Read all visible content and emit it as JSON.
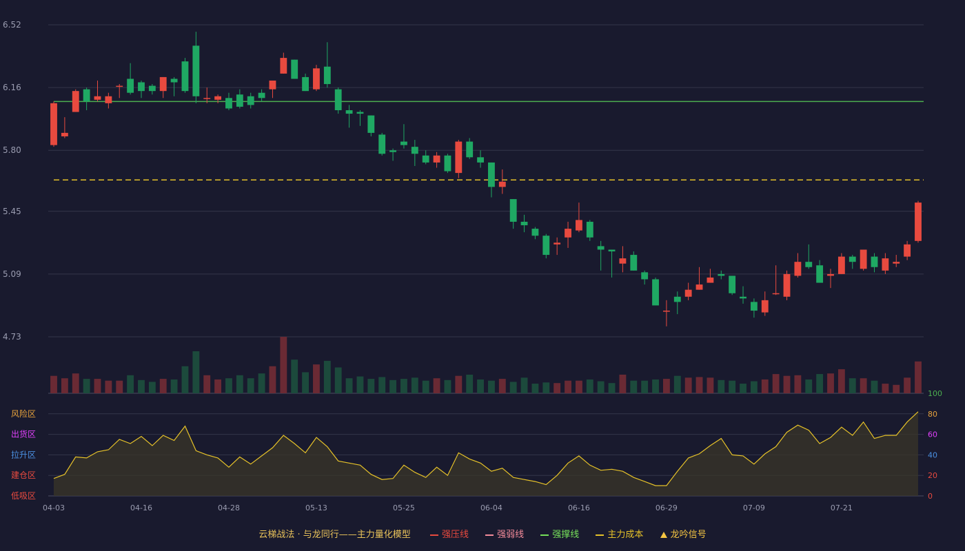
{
  "colors": {
    "background": "#191a2e",
    "up": "#e84a3f",
    "down": "#1fa863",
    "vol_up": "#6a2a34",
    "vol_down": "#1c4a3c",
    "support": "#4caf50",
    "cost": "#e6c229",
    "osc_line": "#e6c229",
    "grid": "#34364a"
  },
  "chart_data": [
    {
      "type": "candlestick",
      "ylim": [
        4.73,
        6.52
      ],
      "y_ticks": [
        "6.52",
        "6.16",
        "5.80",
        "5.45",
        "5.09",
        "4.73"
      ],
      "x_tick_labels": [
        "04-03",
        "04-16",
        "04-28",
        "05-13",
        "05-25",
        "06-04",
        "06-16",
        "06-29",
        "07-09",
        "07-21"
      ],
      "x_tick_indices": [
        0,
        8,
        16,
        24,
        32,
        40,
        48,
        56,
        64,
        72
      ],
      "support_level": 6.08,
      "cost_level": 5.63,
      "candles": [
        [
          5.83,
          6.07,
          6.08,
          5.82
        ],
        [
          5.88,
          5.9,
          5.99,
          5.87
        ],
        [
          6.02,
          6.14,
          6.15,
          6.02
        ],
        [
          6.15,
          6.08,
          6.16,
          6.03
        ],
        [
          6.09,
          6.11,
          6.2,
          6.08
        ],
        [
          6.07,
          6.11,
          6.13,
          6.04
        ],
        [
          6.17,
          6.17,
          6.18,
          6.1
        ],
        [
          6.21,
          6.13,
          6.3,
          6.12
        ],
        [
          6.19,
          6.14,
          6.2,
          6.1
        ],
        [
          6.17,
          6.14,
          6.18,
          6.12
        ],
        [
          6.14,
          6.22,
          6.22,
          6.1
        ],
        [
          6.21,
          6.19,
          6.22,
          6.11
        ],
        [
          6.31,
          6.14,
          6.33,
          6.13
        ],
        [
          6.4,
          6.11,
          6.48,
          6.07
        ],
        [
          6.1,
          6.1,
          6.16,
          6.07
        ],
        [
          6.09,
          6.11,
          6.12,
          6.07
        ],
        [
          6.1,
          6.04,
          6.13,
          6.03
        ],
        [
          6.12,
          6.05,
          6.15,
          6.04
        ],
        [
          6.11,
          6.06,
          6.13,
          6.04
        ],
        [
          6.13,
          6.1,
          6.15,
          6.08
        ],
        [
          6.15,
          6.2,
          6.2,
          6.1
        ],
        [
          6.24,
          6.33,
          6.36,
          6.24
        ],
        [
          6.32,
          6.21,
          6.32,
          6.21
        ],
        [
          6.22,
          6.14,
          6.24,
          6.14
        ],
        [
          6.15,
          6.27,
          6.29,
          6.14
        ],
        [
          6.28,
          6.18,
          6.42,
          6.16
        ],
        [
          6.15,
          6.03,
          6.16,
          6.01
        ],
        [
          6.03,
          6.01,
          6.06,
          5.93
        ],
        [
          6.02,
          6.01,
          6.03,
          5.94
        ],
        [
          6.0,
          5.9,
          6.0,
          5.88
        ],
        [
          5.89,
          5.78,
          5.9,
          5.77
        ],
        [
          5.8,
          5.79,
          5.81,
          5.74
        ],
        [
          5.85,
          5.83,
          5.95,
          5.81
        ],
        [
          5.82,
          5.78,
          5.86,
          5.71
        ],
        [
          5.77,
          5.73,
          5.8,
          5.72
        ],
        [
          5.73,
          5.77,
          5.79,
          5.7
        ],
        [
          5.77,
          5.68,
          5.78,
          5.67
        ],
        [
          5.67,
          5.85,
          5.86,
          5.64
        ],
        [
          5.85,
          5.76,
          5.87,
          5.75
        ],
        [
          5.76,
          5.73,
          5.8,
          5.7
        ],
        [
          5.73,
          5.59,
          5.73,
          5.53
        ],
        [
          5.59,
          5.62,
          5.69,
          5.55
        ],
        [
          5.52,
          5.39,
          5.52,
          5.35
        ],
        [
          5.39,
          5.37,
          5.43,
          5.33
        ],
        [
          5.35,
          5.31,
          5.36,
          5.29
        ],
        [
          5.31,
          5.2,
          5.32,
          5.18
        ],
        [
          5.26,
          5.27,
          5.3,
          5.2
        ],
        [
          5.3,
          5.35,
          5.39,
          5.24
        ],
        [
          5.34,
          5.4,
          5.5,
          5.33
        ],
        [
          5.39,
          5.3,
          5.4,
          5.28
        ],
        [
          5.25,
          5.23,
          5.28,
          5.11
        ],
        [
          5.23,
          5.22,
          5.23,
          5.07
        ],
        [
          5.15,
          5.18,
          5.25,
          5.1
        ],
        [
          5.2,
          5.11,
          5.22,
          5.11
        ],
        [
          5.1,
          5.06,
          5.11,
          5.03
        ],
        [
          5.06,
          4.91,
          5.07,
          4.91
        ],
        [
          4.88,
          4.88,
          4.94,
          4.79
        ],
        [
          4.96,
          4.93,
          4.99,
          4.86
        ],
        [
          4.96,
          5.0,
          5.04,
          4.94
        ],
        [
          5.0,
          5.03,
          5.13,
          5.0
        ],
        [
          5.04,
          5.07,
          5.12,
          5.04
        ],
        [
          5.09,
          5.08,
          5.11,
          5.06
        ],
        [
          5.08,
          4.98,
          5.08,
          4.97
        ],
        [
          4.96,
          4.95,
          5.02,
          4.92
        ],
        [
          4.93,
          4.88,
          4.95,
          4.84
        ],
        [
          4.87,
          4.94,
          4.99,
          4.85
        ],
        [
          4.98,
          4.98,
          5.14,
          4.97
        ],
        [
          4.96,
          5.09,
          5.11,
          4.94
        ],
        [
          5.08,
          5.16,
          5.21,
          5.07
        ],
        [
          5.16,
          5.13,
          5.26,
          5.12
        ],
        [
          5.14,
          5.04,
          5.17,
          5.04
        ],
        [
          5.08,
          5.09,
          5.12,
          5.01
        ],
        [
          5.09,
          5.19,
          5.21,
          5.09
        ],
        [
          5.19,
          5.16,
          5.2,
          5.12
        ],
        [
          5.12,
          5.23,
          5.23,
          5.11
        ],
        [
          5.19,
          5.13,
          5.21,
          5.1
        ],
        [
          5.11,
          5.18,
          5.21,
          5.09
        ],
        [
          5.15,
          5.16,
          5.2,
          5.13
        ],
        [
          5.19,
          5.26,
          5.28,
          5.17
        ],
        [
          5.28,
          5.5,
          5.51,
          5.27
        ]
      ],
      "volumes": [
        29,
        25,
        33,
        24,
        24,
        21,
        21,
        30,
        22,
        19,
        24,
        23,
        45,
        70,
        30,
        23,
        25,
        30,
        25,
        33,
        45,
        94,
        56,
        35,
        48,
        54,
        43,
        25,
        28,
        24,
        27,
        22,
        24,
        26,
        21,
        25,
        22,
        29,
        31,
        23,
        21,
        24,
        19,
        26,
        16,
        18,
        17,
        21,
        21,
        23,
        20,
        17,
        31,
        21,
        21,
        23,
        24,
        29,
        26,
        27,
        26,
        22,
        21,
        16,
        20,
        23,
        32,
        29,
        30,
        23,
        32,
        33,
        40,
        25,
        25,
        21,
        16,
        14,
        26,
        53
      ]
    },
    {
      "type": "area",
      "ylim": [
        0,
        100
      ],
      "y_ticks": [
        "0",
        "20",
        "40",
        "60",
        "80",
        "100"
      ],
      "y_tick_colors": [
        "#e84a3f",
        "#e84a3f",
        "#4a90e2",
        "#e040fb",
        "#e6a23c",
        "#4caf50"
      ],
      "zone_labels": [
        "风险区",
        "出货区",
        "拉升区",
        "建仓区",
        "低吸区"
      ],
      "zone_colors": [
        "#e6a23c",
        "#e040fb",
        "#4a90e2",
        "#e84a3f",
        "#e84a3f"
      ],
      "values": [
        17,
        21,
        38,
        37,
        43,
        45,
        55,
        51,
        58,
        49,
        59,
        54,
        68,
        44,
        40,
        37,
        28,
        38,
        31,
        39,
        47,
        59,
        51,
        42,
        57,
        48,
        34,
        32,
        30,
        21,
        16,
        17,
        30,
        23,
        18,
        28,
        20,
        42,
        36,
        32,
        24,
        27,
        18,
        16,
        14,
        11,
        20,
        32,
        39,
        30,
        25,
        26,
        24,
        18,
        14,
        10,
        10,
        24,
        37,
        41,
        49,
        56,
        40,
        39,
        31,
        41,
        48,
        62,
        69,
        64,
        51,
        57,
        67,
        59,
        72,
        56,
        59,
        59,
        72,
        82
      ]
    }
  ],
  "legend": {
    "title": "云梯战法 · 与龙同行——主力量化模型",
    "items": [
      {
        "label": "强压线",
        "color": "#e84a3f",
        "style": "solid"
      },
      {
        "label": "强弱线",
        "color": "#f38b9a",
        "style": "dash"
      },
      {
        "label": "强撑线",
        "color": "#76e05a",
        "style": "solid"
      },
      {
        "label": "主力成本",
        "color": "#e6c229",
        "style": "dash"
      },
      {
        "label": "龙吟信号",
        "color": "#f5c542",
        "style": "triangle"
      }
    ]
  }
}
